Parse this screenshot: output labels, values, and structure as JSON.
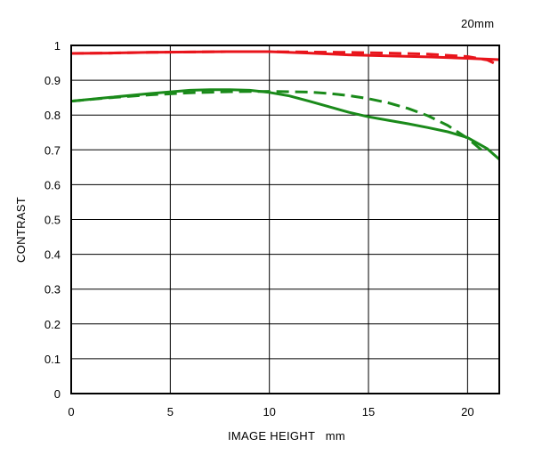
{
  "chart_data": {
    "type": "line",
    "corner_label": "20mm",
    "xlabel": "IMAGE HEIGHT   mm",
    "ylabel": "CONTRAST",
    "xlim": [
      0,
      21.6
    ],
    "ylim": [
      0,
      1
    ],
    "x_ticks": [
      "0",
      "5",
      "10",
      "15",
      "20"
    ],
    "y_ticks": [
      "0",
      "0.1",
      "0.2",
      "0.3",
      "0.4",
      "0.5",
      "0.6",
      "0.7",
      "0.8",
      "0.9",
      "1"
    ],
    "grid": true,
    "series": [
      {
        "color": "#e8141b",
        "dash": false,
        "x": [
          0,
          2,
          4,
          6,
          8,
          10,
          12,
          14,
          16,
          18,
          20,
          21.6
        ],
        "y": [
          0.977,
          0.978,
          0.98,
          0.981,
          0.982,
          0.982,
          0.978,
          0.973,
          0.97,
          0.967,
          0.963,
          0.959
        ]
      },
      {
        "color": "#e8141b",
        "dash": true,
        "x": [
          0,
          2,
          4,
          6,
          8,
          10,
          12,
          14,
          16,
          18,
          20,
          21,
          21.6
        ],
        "y": [
          0.977,
          0.978,
          0.98,
          0.981,
          0.982,
          0.982,
          0.981,
          0.98,
          0.978,
          0.975,
          0.968,
          0.958,
          0.942
        ]
      },
      {
        "color": "#1a8a1a",
        "dash": false,
        "x": [
          0,
          2,
          4,
          6,
          7,
          8,
          9,
          10,
          11,
          12,
          13,
          14,
          15,
          16,
          17,
          18,
          19,
          20,
          21,
          21.6
        ],
        "y": [
          0.84,
          0.851,
          0.862,
          0.871,
          0.873,
          0.873,
          0.871,
          0.865,
          0.855,
          0.84,
          0.824,
          0.808,
          0.795,
          0.785,
          0.775,
          0.764,
          0.752,
          0.735,
          0.703,
          0.673
        ]
      },
      {
        "color": "#1a8a1a",
        "dash": true,
        "x": [
          0,
          2,
          4,
          6,
          8,
          10,
          11,
          12,
          13,
          14,
          15,
          16,
          17,
          18,
          19,
          20,
          20.7
        ],
        "y": [
          0.84,
          0.85,
          0.858,
          0.864,
          0.867,
          0.868,
          0.867,
          0.866,
          0.862,
          0.856,
          0.847,
          0.835,
          0.819,
          0.798,
          0.77,
          0.733,
          0.7
        ]
      }
    ]
  }
}
